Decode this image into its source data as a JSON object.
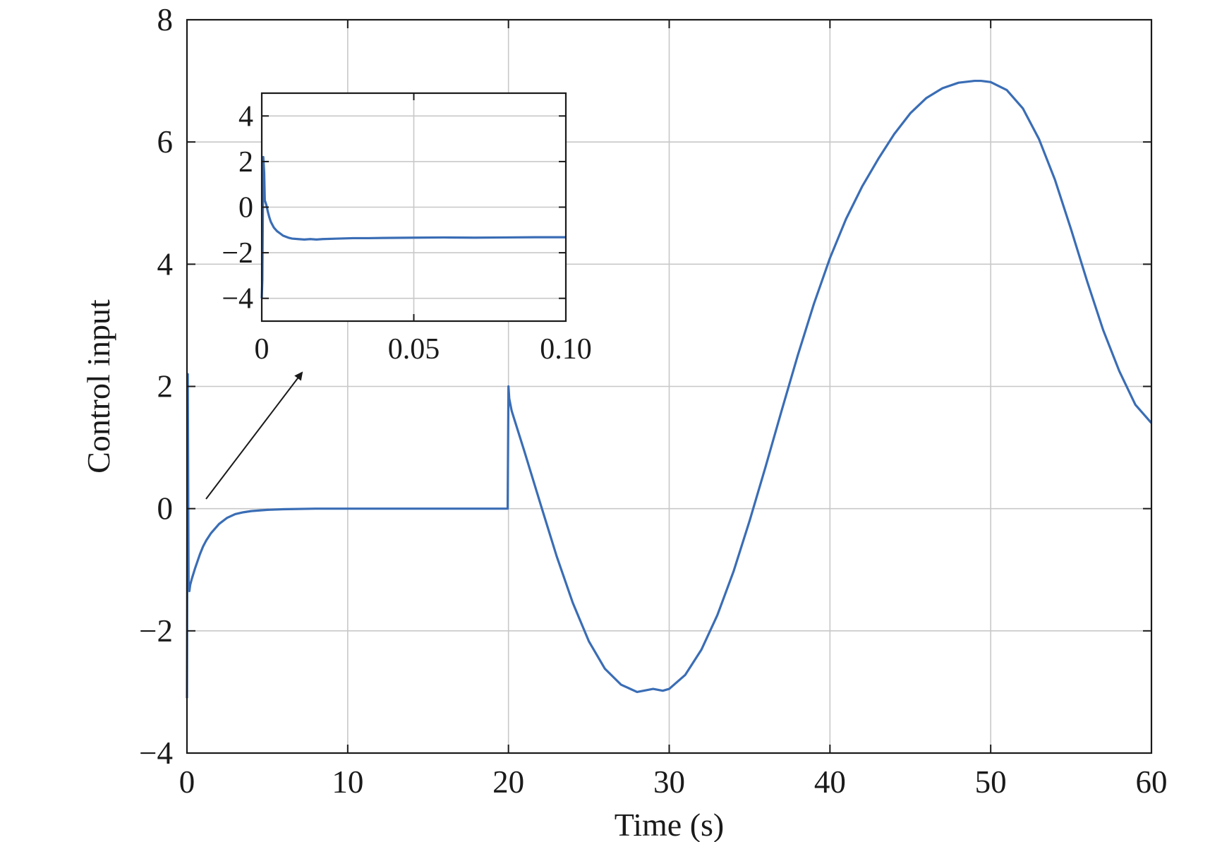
{
  "chart_data": [
    {
      "type": "line",
      "title": "",
      "xlabel": "Time (s)",
      "ylabel": "Control input",
      "xlim": [
        0,
        60
      ],
      "ylim": [
        -4,
        8
      ],
      "xticks": [
        0,
        10,
        20,
        30,
        40,
        50,
        60
      ],
      "xtick_labels": [
        "0",
        "10",
        "20",
        "30",
        "40",
        "50",
        "60"
      ],
      "yticks": [
        -4,
        -2,
        0,
        2,
        4,
        6,
        8
      ],
      "ytick_labels": [
        "−4",
        "−2",
        "0",
        "2",
        "4",
        "6",
        "8"
      ],
      "grid": true,
      "color": "#3a6db5",
      "series": [
        {
          "x": [
            0,
            0.05,
            0.1,
            0.15,
            0.2,
            0.3,
            0.5,
            0.8,
            1.0,
            1.2,
            1.5,
            2.0,
            2.5,
            3.0,
            3.5,
            4.0,
            5.0,
            6.0,
            8.0,
            10,
            12,
            15,
            18,
            19.9,
            19.95,
            20.0,
            20.05,
            20.2,
            21,
            22,
            23,
            24,
            25,
            26,
            27,
            28,
            29,
            29.6,
            30,
            31,
            32,
            33,
            34,
            35,
            36,
            37,
            38,
            39,
            40,
            41,
            42,
            43,
            44,
            45,
            46,
            47,
            48,
            49,
            49.4,
            50,
            51,
            52,
            53,
            54,
            55,
            56,
            57,
            58,
            59,
            60
          ],
          "y": [
            -3.1,
            2.2,
            -1.3,
            -1.35,
            -1.25,
            -1.15,
            -0.98,
            -0.75,
            -0.62,
            -0.52,
            -0.4,
            -0.25,
            -0.15,
            -0.09,
            -0.06,
            -0.04,
            -0.02,
            -0.01,
            0,
            0,
            0,
            0,
            0,
            0,
            0,
            2.0,
            1.8,
            1.6,
            0.93,
            0.07,
            -0.78,
            -1.54,
            -2.17,
            -2.62,
            -2.88,
            -3.0,
            -2.95,
            -2.98,
            -2.95,
            -2.72,
            -2.31,
            -1.74,
            -1.03,
            -0.2,
            0.69,
            1.61,
            2.51,
            3.35,
            4.1,
            4.74,
            5.27,
            5.72,
            6.13,
            6.47,
            6.72,
            6.88,
            6.97,
            7.0,
            7.0,
            6.98,
            6.85,
            6.55,
            6.05,
            5.38,
            4.57,
            3.72,
            2.92,
            2.25,
            1.7,
            1.4
          ]
        }
      ]
    },
    {
      "type": "line",
      "title": "",
      "xlabel": "",
      "ylabel": "",
      "xlim": [
        0,
        0.1
      ],
      "ylim": [
        -5,
        5
      ],
      "xticks": [
        0,
        0.05,
        0.1
      ],
      "xtick_labels": [
        "0",
        "0.05",
        "0.10"
      ],
      "yticks": [
        -4,
        -2,
        0,
        2,
        4
      ],
      "ytick_labels": [
        "−4",
        "−2",
        "0",
        "2",
        "4"
      ],
      "grid": true,
      "color": "#3a6db5",
      "series": [
        {
          "x": [
            0,
            0.0002,
            0.0005,
            0.0008,
            0.001,
            0.0015,
            0.002,
            0.0025,
            0.003,
            0.004,
            0.005,
            0.006,
            0.007,
            0.008,
            0.009,
            0.01,
            0.012,
            0.014,
            0.016,
            0.018,
            0.02,
            0.025,
            0.03,
            0.035,
            0.04,
            0.05,
            0.06,
            0.07,
            0.08,
            0.09,
            0.1
          ],
          "y": [
            -4.0,
            -3.2,
            2.2,
            1.5,
            0.3,
            0.1,
            -0.2,
            -0.45,
            -0.65,
            -0.9,
            -1.05,
            -1.15,
            -1.25,
            -1.3,
            -1.35,
            -1.38,
            -1.4,
            -1.42,
            -1.4,
            -1.42,
            -1.4,
            -1.38,
            -1.36,
            -1.36,
            -1.35,
            -1.34,
            -1.33,
            -1.34,
            -1.33,
            -1.32,
            -1.32
          ]
        }
      ]
    }
  ]
}
